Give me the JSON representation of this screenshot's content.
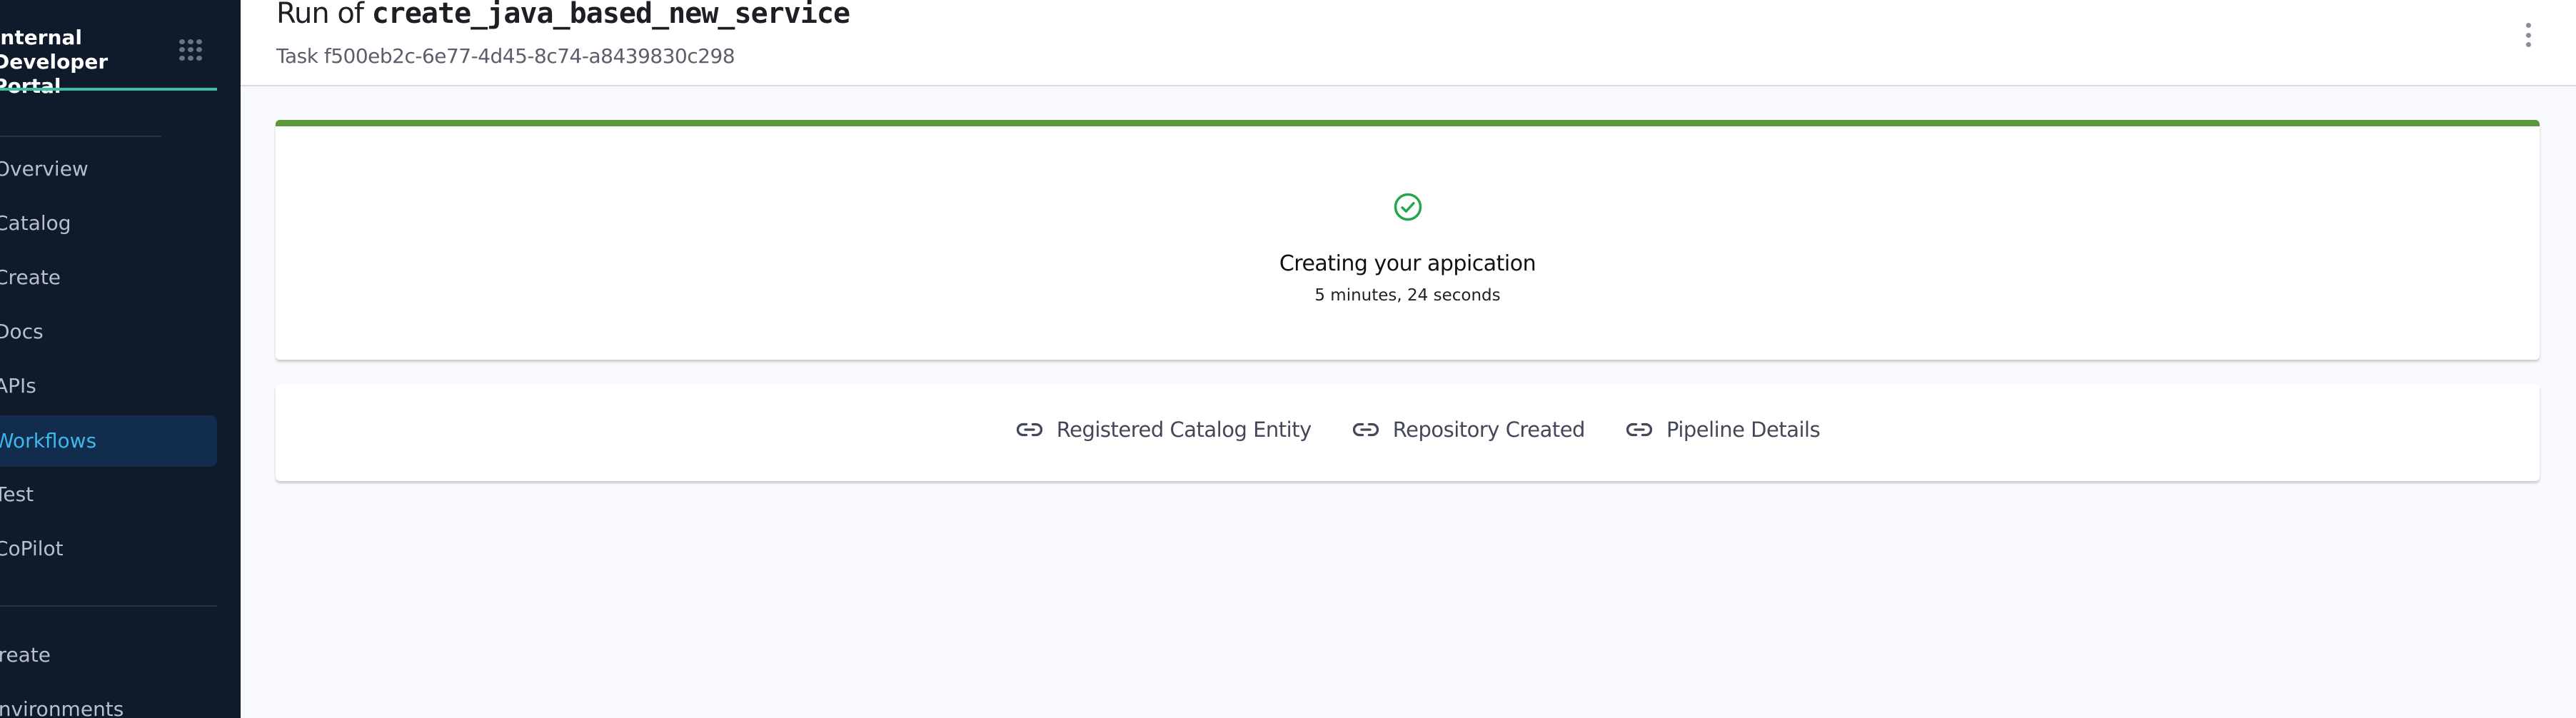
{
  "sidebar": {
    "brand": "Internal Developer Portal",
    "items": [
      {
        "label": "Overview"
      },
      {
        "label": "Catalog"
      },
      {
        "label": "Create"
      },
      {
        "label": "Docs"
      },
      {
        "label": "APIs"
      },
      {
        "label": "Workflows",
        "active": true
      },
      {
        "label": "Test"
      },
      {
        "label": "CoPilot"
      }
    ],
    "secondary": [
      {
        "label": "Create"
      },
      {
        "label": "Environments"
      }
    ],
    "active_color": "#3db8e8",
    "accent_line_color": "#3dbfa6"
  },
  "header": {
    "title_prefix": "Run of",
    "title_template": "create_java_based_new_service",
    "subtitle": "Task f500eb2c-6e77-4d45-8c74-a8439830c298"
  },
  "status_card": {
    "status": "success",
    "status_color": "#5c973a",
    "icon": "check-circle-icon",
    "message": "Creating your appication",
    "duration": "5 minutes, 24 seconds"
  },
  "links": [
    {
      "label": "Registered Catalog Entity",
      "icon": "link-icon"
    },
    {
      "label": "Repository Created",
      "icon": "link-icon"
    },
    {
      "label": "Pipeline Details",
      "icon": "link-icon"
    }
  ]
}
